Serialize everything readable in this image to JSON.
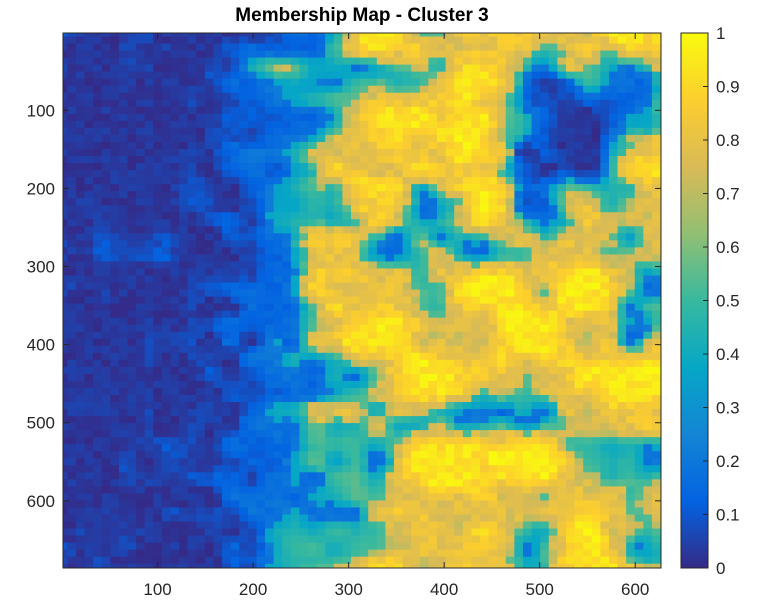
{
  "chart_data": {
    "type": "heatmap",
    "title": "Membership Map - Cluster 3",
    "xlabel": "",
    "ylabel": "",
    "xlim": [
      1,
      627
    ],
    "ylim": [
      1,
      686
    ],
    "y_direction": "reversed",
    "x_ticks": [
      100,
      200,
      300,
      400,
      500,
      600
    ],
    "y_ticks": [
      100,
      200,
      300,
      400,
      500,
      600
    ],
    "colormap": "parula",
    "colorbar": {
      "min": 0,
      "max": 1,
      "ticks": [
        0,
        0.1,
        0.2,
        0.3,
        0.4,
        0.5,
        0.6,
        0.7,
        0.8,
        0.9,
        1
      ],
      "tick_labels": [
        "0",
        "0.1",
        "0.2",
        "0.3",
        "0.4",
        "0.5",
        "0.6",
        "0.7",
        "0.8",
        "0.9",
        "1"
      ]
    },
    "value_range": [
      0,
      1
    ],
    "grid": false
  },
  "colors": {
    "axis": "#262626",
    "parula_stops": [
      "#352a87",
      "#0363e1",
      "#1485d4",
      "#06a7c6",
      "#38b99e",
      "#92bf73",
      "#d9ba56",
      "#fcce2e",
      "#f9fb0e"
    ]
  }
}
